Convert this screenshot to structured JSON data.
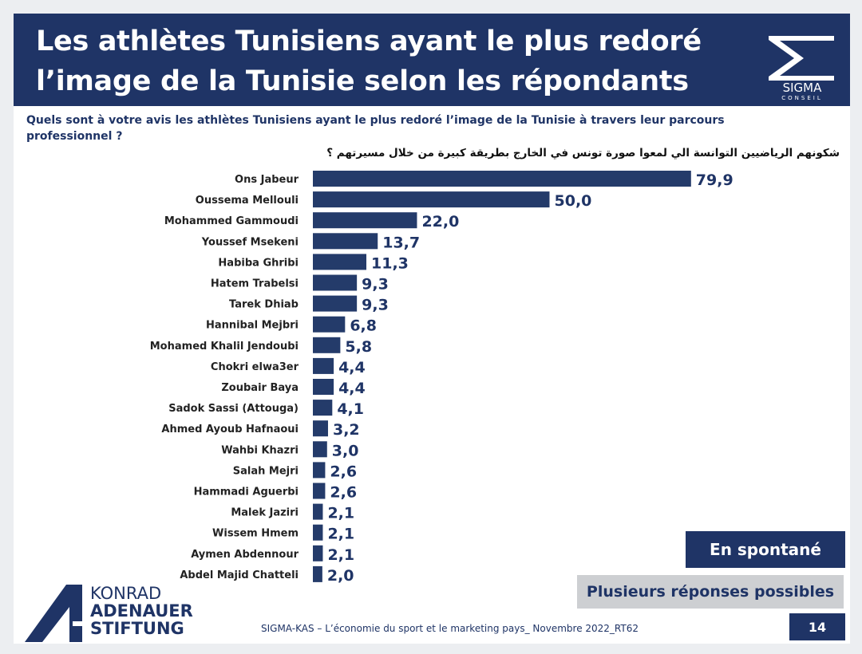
{
  "header": {
    "title": "Les athlètes Tunisiens ayant le plus redoré l’image de la Tunisie selon les répondants",
    "logo_text": "SIGMA",
    "logo_subtext": "CONSEIL"
  },
  "question_fr": "Quels sont à votre avis les athlètes Tunisiens ayant le plus redoré l’image de la Tunisie à travers leur parcours professionnel ?",
  "question_ar": "شكونهم الرياضيين التوانسة الي لمعوا صورة تونس في الخارج بطريقة كبيرة من خلال مسيرتهم ؟",
  "badges": {
    "spontaneous": "En spontané",
    "multiple": "Plusieurs réponses possibles"
  },
  "footer": {
    "kas_line1": "KONRAD",
    "kas_line2": "ADENAUER",
    "kas_line3": "STIFTUNG",
    "source": "SIGMA-KAS – L’économie du sport et le marketing pays_ Novembre 2022_RT62",
    "page": "14"
  },
  "colors": {
    "navy": "#1f3466",
    "bar": "#243b6a",
    "gray_badge": "#cdcfd2"
  },
  "chart_data": {
    "type": "bar",
    "orientation": "horizontal",
    "title": "",
    "xlabel": "",
    "ylabel": "",
    "xlim": [
      0,
      80
    ],
    "grid": false,
    "categories": [
      "Ons Jabeur",
      "Oussema Mellouli",
      "Mohammed Gammoudi",
      "Youssef Msekeni",
      "Habiba Ghribi",
      "Hatem Trabelsi",
      "Tarek Dhiab",
      "Hannibal Mejbri",
      "Mohamed Khalil Jendoubi",
      "Chokri elwa3er",
      "Zoubair Baya",
      "Sadok Sassi (Attouga)",
      "Ahmed Ayoub Hafnaoui",
      "Wahbi Khazri",
      "Salah Mejri",
      "Hammadi Aguerbi",
      "Malek Jaziri",
      "Wissem Hmem",
      "Aymen Abdennour",
      "Abdel Majid Chatteli"
    ],
    "values": [
      79.9,
      50.0,
      22.0,
      13.7,
      11.3,
      9.3,
      9.3,
      6.8,
      5.8,
      4.4,
      4.4,
      4.1,
      3.2,
      3.0,
      2.6,
      2.6,
      2.1,
      2.1,
      2.1,
      2.0
    ],
    "value_labels": [
      "79,9",
      "50,0",
      "22,0",
      "13,7",
      "11,3",
      "9,3",
      "9,3",
      "6,8",
      "5,8",
      "4,4",
      "4,4",
      "4,1",
      "3,2",
      "3,0",
      "2,6",
      "2,6",
      "2,1",
      "2,1",
      "2,1",
      "2,0"
    ]
  }
}
